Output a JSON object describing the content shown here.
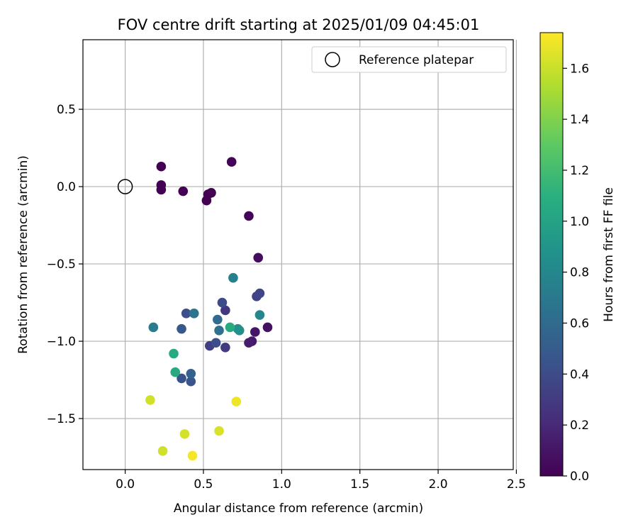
{
  "chart_data": {
    "type": "scatter",
    "title": "FOV centre drift starting at 2025/01/09 04:45:01",
    "xlabel": "Angular distance from reference (arcmin)",
    "ylabel": "Rotation from reference (arcmin)",
    "xlim": [
      -0.27,
      2.48
    ],
    "ylim": [
      -1.83,
      0.95
    ],
    "x_ticks": [
      0.0,
      0.5,
      1.0,
      1.5,
      2.0,
      2.5
    ],
    "x_tick_labels": [
      "0.0",
      "0.5",
      "1.0",
      "1.5",
      "2.0",
      "2.5"
    ],
    "y_ticks": [
      0.5,
      0.0,
      -0.5,
      -1.0,
      -1.5
    ],
    "y_tick_labels": [
      "0.5",
      "0.0",
      "−0.5",
      "−1.0",
      "−1.5"
    ],
    "grid": true,
    "legend": {
      "placement": "top-right",
      "entries": [
        "Reference platepar"
      ]
    },
    "reference_point": {
      "name": "Reference platepar",
      "x": 0.0,
      "y": 0.0,
      "marker": "open-circle",
      "color": "#000000"
    },
    "colorbar": {
      "label": "Hours from first FF file",
      "colormap": "viridis",
      "range": [
        0.0,
        1.74
      ],
      "ticks": [
        0.0,
        0.2,
        0.4,
        0.6,
        0.8,
        1.0,
        1.2,
        1.4,
        1.6
      ],
      "tick_labels": [
        "0.0",
        "0.2",
        "0.4",
        "0.6",
        "0.8",
        "1.0",
        "1.2",
        "1.4",
        "1.6"
      ]
    },
    "points": [
      {
        "x": 0.23,
        "y": 0.13,
        "c": 0.0
      },
      {
        "x": 0.23,
        "y": 0.01,
        "c": 0.0
      },
      {
        "x": 0.23,
        "y": -0.02,
        "c": 0.0
      },
      {
        "x": 0.37,
        "y": -0.03,
        "c": 0.0
      },
      {
        "x": 0.52,
        "y": -0.09,
        "c": 0.0
      },
      {
        "x": 0.53,
        "y": -0.05,
        "c": 0.0
      },
      {
        "x": 0.55,
        "y": -0.04,
        "c": 0.0
      },
      {
        "x": 0.68,
        "y": 0.16,
        "c": 0.02
      },
      {
        "x": 0.79,
        "y": -0.19,
        "c": 0.02
      },
      {
        "x": 0.85,
        "y": -0.46,
        "c": 0.05
      },
      {
        "x": 0.91,
        "y": -0.91,
        "c": 0.08
      },
      {
        "x": 0.83,
        "y": -0.94,
        "c": 0.1
      },
      {
        "x": 0.81,
        "y": -1.0,
        "c": 0.12
      },
      {
        "x": 0.79,
        "y": -1.01,
        "c": 0.14
      },
      {
        "x": 0.64,
        "y": -0.8,
        "c": 0.28
      },
      {
        "x": 0.64,
        "y": -1.04,
        "c": 0.3
      },
      {
        "x": 0.54,
        "y": -1.03,
        "c": 0.32
      },
      {
        "x": 0.84,
        "y": -0.71,
        "c": 0.35
      },
      {
        "x": 0.86,
        "y": -0.69,
        "c": 0.36
      },
      {
        "x": 0.62,
        "y": -0.75,
        "c": 0.4
      },
      {
        "x": 0.58,
        "y": -1.01,
        "c": 0.42
      },
      {
        "x": 0.39,
        "y": -0.82,
        "c": 0.42
      },
      {
        "x": 0.36,
        "y": -1.24,
        "c": 0.44
      },
      {
        "x": 0.42,
        "y": -1.26,
        "c": 0.46
      },
      {
        "x": 0.36,
        "y": -0.92,
        "c": 0.48
      },
      {
        "x": 0.42,
        "y": -1.21,
        "c": 0.55
      },
      {
        "x": 0.59,
        "y": -0.86,
        "c": 0.6
      },
      {
        "x": 0.6,
        "y": -0.93,
        "c": 0.64
      },
      {
        "x": 0.44,
        "y": -0.82,
        "c": 0.66
      },
      {
        "x": 0.18,
        "y": -0.91,
        "c": 0.72
      },
      {
        "x": 0.69,
        "y": -0.59,
        "c": 0.76
      },
      {
        "x": 0.86,
        "y": -0.83,
        "c": 0.8
      },
      {
        "x": 0.72,
        "y": -0.92,
        "c": 0.85
      },
      {
        "x": 0.73,
        "y": -0.93,
        "c": 0.88
      },
      {
        "x": 0.67,
        "y": -0.91,
        "c": 1.05
      },
      {
        "x": 0.31,
        "y": -1.08,
        "c": 1.05
      },
      {
        "x": 0.32,
        "y": -1.2,
        "c": 1.05
      },
      {
        "x": 0.16,
        "y": -1.38,
        "c": 1.62
      },
      {
        "x": 0.24,
        "y": -1.71,
        "c": 1.62
      },
      {
        "x": 0.38,
        "y": -1.6,
        "c": 1.63
      },
      {
        "x": 0.6,
        "y": -1.58,
        "c": 1.64
      },
      {
        "x": 0.71,
        "y": -1.39,
        "c": 1.7
      },
      {
        "x": 0.43,
        "y": -1.74,
        "c": 1.72
      }
    ]
  }
}
